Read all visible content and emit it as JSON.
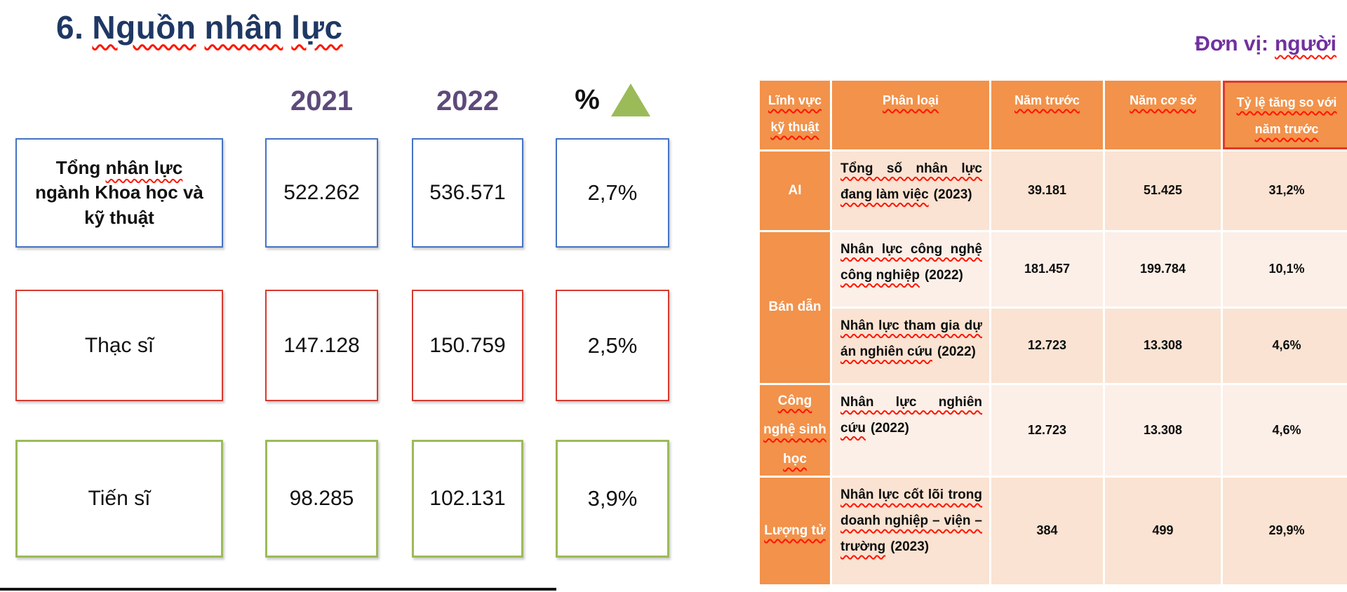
{
  "title": {
    "prefix": "6.",
    "words": [
      "Nguồn",
      "nhân",
      "lực"
    ]
  },
  "matrix": {
    "col_headers": {
      "y2021": "2021",
      "y2022": "2022",
      "pct": "%"
    },
    "rows": [
      {
        "label_prefix": "Tổng",
        "label_sq": "nhân lực",
        "label_suffix": "ngành Khoa học và kỹ thuật",
        "y2021": "522.262",
        "y2022": "536.571",
        "pct": "2,7%",
        "border_color": "#4573C4"
      },
      {
        "label": "Thạc sĩ",
        "y2021": "147.128",
        "y2022": "150.759",
        "pct": "2,5%",
        "border_color": "#D63B30"
      },
      {
        "label": "Tiến sĩ",
        "y2021": "98.285",
        "y2022": "102.131",
        "pct": "3,9%",
        "border_color": "#9BBB59"
      }
    ]
  },
  "unit": {
    "prefix": "Đơn vị:",
    "term": "người"
  },
  "table": {
    "headers": [
      "Lĩnh vực kỹ thuật",
      "Phân loại",
      "Năm trước",
      "Năm cơ sở",
      "Tỷ lệ tăng so với năm trước"
    ],
    "rows": [
      {
        "category": "AI",
        "desc_main": "Tổng số nhân lực đang làm việc",
        "desc_year": "(2023)",
        "prev": "39.181",
        "base": "51.425",
        "rate": "31,2%"
      },
      {
        "category": "Bán dẫn",
        "desc_main": "Nhân lực công nghệ công nghiệp",
        "desc_year": "(2022)",
        "prev": "181.457",
        "base": "199.784",
        "rate": "10,1%"
      },
      {
        "desc_main": "Nhân lực tham gia dự án nghiên cứu",
        "desc_year": "(2022)",
        "prev": "12.723",
        "base": "13.308",
        "rate": "4,6%"
      },
      {
        "category": "Công nghệ sinh học",
        "desc_main": "Nhân lực nghiên cứu",
        "desc_year": "(2022)",
        "prev": "12.723",
        "base": "13.308",
        "rate": "4,6%"
      },
      {
        "category": "Lượng tử",
        "desc_main": "Nhân lực cốt lõi trong doanh nghiệp – viện – trường",
        "desc_year": "(2023)",
        "prev": "384",
        "base": "499",
        "rate": "29,9%"
      }
    ]
  },
  "colors": {
    "title_navy": "#1F3864",
    "year_purple": "#5D4A7A",
    "unit_purple": "#7030A0",
    "box_blue": "#4573C4",
    "box_red": "#D63B30",
    "box_green": "#9BBB59",
    "triangle_green": "#9BBB59",
    "table_orange": "#F2924B",
    "band_dark": "#FAE3D2",
    "band_light": "#FCEFE7",
    "highlight_red_border": "#E0392B",
    "squiggle_red": "#FF1500"
  }
}
